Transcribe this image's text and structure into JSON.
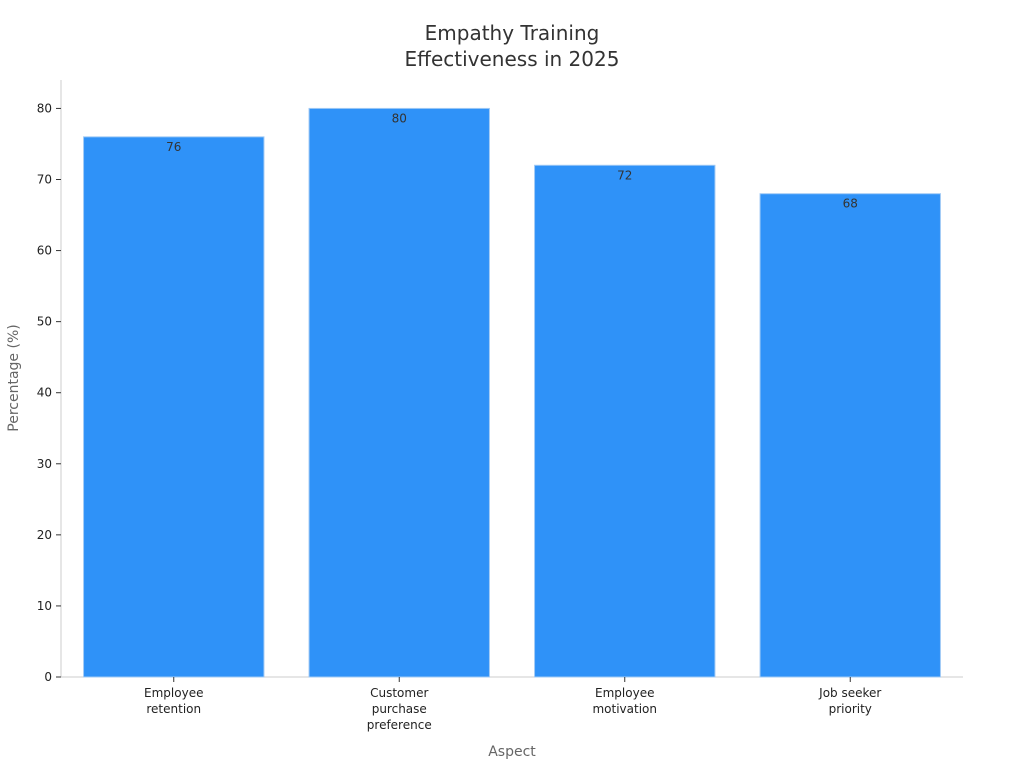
{
  "chart_data": {
    "type": "bar",
    "title_lines": [
      "Empathy Training",
      "Effectiveness in 2025"
    ],
    "categories": [
      [
        "Employee",
        "retention"
      ],
      [
        "Customer",
        "purchase",
        "preference"
      ],
      [
        "Employee",
        "motivation"
      ],
      [
        "Job seeker",
        "priority"
      ]
    ],
    "values": [
      76,
      80,
      72,
      68
    ],
    "xlabel": "Aspect",
    "ylabel": "Percentage (%)",
    "ylim": [
      0,
      84
    ],
    "yticks": [
      0,
      10,
      20,
      30,
      40,
      50,
      60,
      70,
      80
    ],
    "bar_color": "#2F92F8",
    "grid": false,
    "data_labels": true
  }
}
